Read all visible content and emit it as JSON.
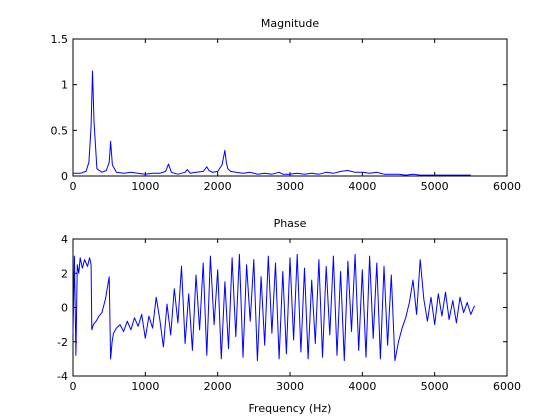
{
  "chart_data": [
    {
      "type": "line",
      "title": "Magnitude",
      "xlabel": "",
      "ylabel": "",
      "xlim": [
        0,
        6000
      ],
      "ylim": [
        0,
        1.5
      ],
      "xticks": [
        0,
        1000,
        2000,
        3000,
        4000,
        5000,
        6000
      ],
      "yticks": [
        0,
        0.5,
        1,
        1.5
      ],
      "xtick_labels": [
        "0",
        "1000",
        "2000",
        "3000",
        "4000",
        "5000",
        "6000"
      ],
      "ytick_labels": [
        "0",
        "0.5",
        "1",
        "1.5"
      ],
      "grid": false,
      "series": [
        {
          "color": "#0000ff",
          "x": [
            0,
            100,
            180,
            220,
            250,
            270,
            290,
            330,
            400,
            460,
            500,
            520,
            545,
            600,
            700,
            800,
            900,
            1000,
            1100,
            1200,
            1280,
            1320,
            1360,
            1450,
            1550,
            1580,
            1620,
            1700,
            1800,
            1850,
            1880,
            1930,
            2000,
            2060,
            2100,
            2120,
            2140,
            2180,
            2250,
            2350,
            2450,
            2550,
            2650,
            2750,
            2850,
            2900,
            3000,
            3100,
            3200,
            3300,
            3400,
            3500,
            3600,
            3700,
            3800,
            3900,
            4000,
            4100,
            4200,
            4300,
            4400,
            4500,
            4600,
            4700,
            4800,
            4900,
            5000,
            5100,
            5200,
            5300,
            5400,
            5500
          ],
          "y": [
            0.03,
            0.03,
            0.05,
            0.15,
            0.55,
            1.15,
            0.6,
            0.08,
            0.04,
            0.06,
            0.15,
            0.38,
            0.12,
            0.04,
            0.03,
            0.04,
            0.03,
            0.02,
            0.03,
            0.03,
            0.05,
            0.13,
            0.04,
            0.02,
            0.04,
            0.07,
            0.03,
            0.04,
            0.05,
            0.1,
            0.06,
            0.04,
            0.05,
            0.12,
            0.28,
            0.15,
            0.08,
            0.05,
            0.04,
            0.03,
            0.04,
            0.02,
            0.03,
            0.02,
            0.04,
            0.02,
            0.02,
            0.03,
            0.02,
            0.03,
            0.02,
            0.04,
            0.03,
            0.05,
            0.06,
            0.04,
            0.04,
            0.03,
            0.04,
            0.02,
            0.02,
            0.02,
            0.01,
            0.02,
            0.01,
            0.01,
            0.01,
            0.01,
            0.01,
            0.01,
            0.01,
            0.01
          ]
        }
      ]
    },
    {
      "type": "line",
      "title": "Phase",
      "xlabel": "Frequency (Hz)",
      "ylabel": "",
      "xlim": [
        0,
        6000
      ],
      "ylim": [
        -4,
        4
      ],
      "xticks": [
        0,
        1000,
        2000,
        3000,
        4000,
        5000,
        6000
      ],
      "yticks": [
        -4,
        -2,
        0,
        2,
        4
      ],
      "xtick_labels": [
        "0",
        "1000",
        "2000",
        "3000",
        "4000",
        "5000",
        "6000"
      ],
      "ytick_labels": [
        "-4",
        "-2",
        "0",
        "2",
        "4"
      ],
      "grid": false,
      "series": [
        {
          "color": "#0000ff",
          "x": [
            0,
            20,
            40,
            60,
            80,
            100,
            130,
            160,
            200,
            230,
            250,
            260,
            280,
            320,
            360,
            400,
            450,
            500,
            520,
            540,
            560,
            600,
            650,
            700,
            750,
            800,
            850,
            900,
            950,
            1000,
            1050,
            1100,
            1150,
            1200,
            1250,
            1300,
            1350,
            1400,
            1450,
            1500,
            1550,
            1600,
            1650,
            1700,
            1750,
            1800,
            1850,
            1900,
            1950,
            2000,
            2050,
            2100,
            2150,
            2200,
            2250,
            2300,
            2350,
            2400,
            2450,
            2500,
            2550,
            2600,
            2650,
            2700,
            2750,
            2800,
            2850,
            2900,
            2950,
            3000,
            3050,
            3100,
            3150,
            3200,
            3250,
            3300,
            3350,
            3400,
            3450,
            3500,
            3550,
            3600,
            3650,
            3700,
            3750,
            3800,
            3850,
            3900,
            3950,
            4000,
            4050,
            4100,
            4150,
            4200,
            4250,
            4300,
            4350,
            4400,
            4450,
            4500,
            4550,
            4600,
            4650,
            4700,
            4750,
            4800,
            4850,
            4900,
            4950,
            5000,
            5050,
            5100,
            5150,
            5200,
            5250,
            5300,
            5350,
            5400,
            5450,
            5500,
            5550
          ],
          "y": [
            -1.5,
            3.0,
            -2.8,
            2.5,
            2.0,
            2.9,
            2.3,
            2.8,
            2.4,
            2.9,
            2.5,
            -1.3,
            -1.0,
            -0.8,
            -0.5,
            -0.3,
            0.5,
            1.8,
            -3.0,
            -2.0,
            -1.5,
            -1.2,
            -1.0,
            -1.4,
            -0.8,
            -1.3,
            -0.6,
            -1.1,
            -0.4,
            -1.8,
            -0.5,
            -1.2,
            0.6,
            -0.7,
            -2.3,
            0.2,
            -1.6,
            1.1,
            -0.9,
            2.4,
            -2.1,
            0.8,
            -2.5,
            1.9,
            -1.3,
            2.6,
            -2.8,
            3.0,
            -1.0,
            2.2,
            -3.0,
            1.5,
            -2.4,
            2.9,
            -1.7,
            3.1,
            -2.9,
            2.5,
            -0.8,
            2.8,
            -3.1,
            1.8,
            -2.2,
            3.0,
            -1.5,
            2.6,
            -3.0,
            2.1,
            -2.7,
            2.9,
            -1.9,
            3.1,
            -2.6,
            2.3,
            -3.0,
            1.6,
            -2.1,
            2.8,
            -2.9,
            2.4,
            -1.6,
            3.0,
            -2.8,
            2.1,
            -3.1,
            2.7,
            -1.4,
            3.1,
            -2.5,
            2.2,
            -2.9,
            3.0,
            -1.8,
            2.6,
            -3.0,
            2.4,
            -2.2,
            1.9,
            -3.1,
            -2.0,
            -1.2,
            -0.6,
            0.3,
            1.6,
            -0.4,
            2.8,
            0.5,
            -0.8,
            0.6,
            -1.0,
            0.8,
            -0.5,
            0.9,
            -0.7,
            0.4,
            -0.9,
            0.6,
            -0.3,
            0.3,
            -0.4,
            0.1
          ]
        }
      ]
    }
  ]
}
